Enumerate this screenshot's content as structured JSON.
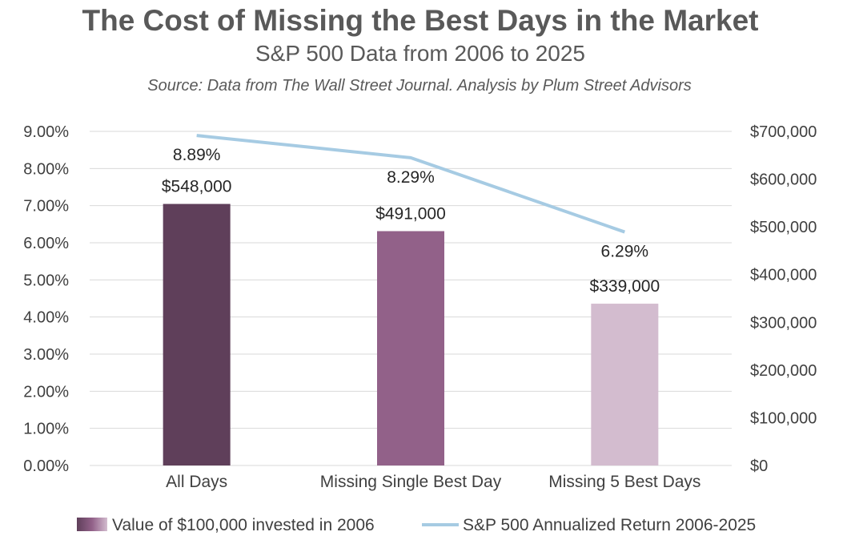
{
  "chart_data": {
    "type": "bar",
    "title": "The Cost of Missing the Best Days in the Market",
    "subtitle": "S&P 500 Data from 2006 to 2025",
    "source": "Source:  Data from The Wall Street Journal.  Analysis by Plum Street Advisors",
    "categories": [
      "All Days",
      "Missing Single Best Day",
      "Missing 5 Best Days"
    ],
    "series": [
      {
        "name": "Value of $100,000 invested in 2006",
        "type": "bar",
        "axis": "right",
        "values": [
          548000,
          491000,
          339000
        ],
        "labels": [
          "$548,000",
          "$491,000",
          "$339,000"
        ],
        "colors": [
          "#5f3f5a",
          "#926189",
          "#d3bccf"
        ]
      },
      {
        "name": "S&P 500 Annualized Return 2006-2025",
        "type": "line",
        "axis": "left",
        "values": [
          8.89,
          8.29,
          6.29
        ],
        "labels": [
          "8.89%",
          "8.29%",
          "6.29%"
        ],
        "color": "#a6cbe3"
      }
    ],
    "y_left": {
      "min": 0,
      "max": 9,
      "step": 1,
      "tick_labels": [
        "0.00%",
        "1.00%",
        "2.00%",
        "3.00%",
        "4.00%",
        "5.00%",
        "6.00%",
        "7.00%",
        "8.00%",
        "9.00%"
      ]
    },
    "y_right": {
      "min": 0,
      "max": 700000,
      "step": 100000,
      "tick_labels": [
        "$0",
        "$100,000",
        "$200,000",
        "$300,000",
        "$400,000",
        "$500,000",
        "$600,000",
        "$700,000"
      ]
    },
    "grid": true,
    "legend_position": "bottom",
    "legend": [
      {
        "label": "Value of $100,000 invested in 2006",
        "kind": "bar-gradient"
      },
      {
        "label": "S&P 500 Annualized Return 2006-2025",
        "kind": "line"
      }
    ]
  }
}
